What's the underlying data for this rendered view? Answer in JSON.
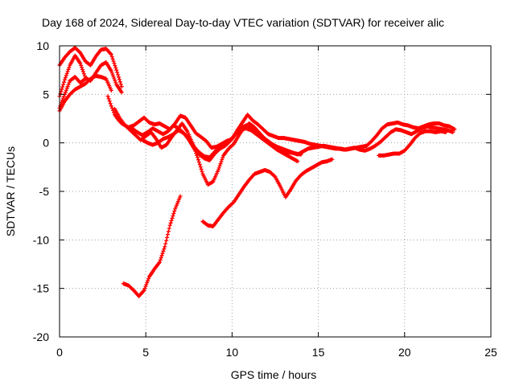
{
  "chart_data": {
    "type": "scatter",
    "title": "Day 168 of 2024, Sidereal Day-to-day VTEC variation (SDTVAR) for receiver alic",
    "xlabel": "GPS time / hours",
    "ylabel": "SDTVAR / TECUs",
    "xlim": [
      0,
      25
    ],
    "ylim": [
      -20,
      10
    ],
    "xticks": [
      0,
      5,
      10,
      15,
      20,
      25
    ],
    "yticks": [
      -20,
      -15,
      -10,
      -5,
      0,
      5,
      10
    ],
    "grid": true,
    "legend": "none",
    "marker": "plus",
    "color": "#ff0000",
    "tracks": [
      {
        "x": [
          0.0,
          0.3,
          0.6,
          0.9,
          1.2,
          1.5,
          1.8,
          2.1,
          2.4,
          2.7,
          3.0,
          3.3,
          3.6
        ],
        "y": [
          8.0,
          8.8,
          9.4,
          9.8,
          9.3,
          8.4,
          8.0,
          8.9,
          9.6,
          9.7,
          9.1,
          7.5,
          5.8
        ]
      },
      {
        "x": [
          0.0,
          0.3,
          0.6,
          0.9,
          1.2,
          1.5,
          1.8,
          2.1,
          2.4,
          2.7,
          3.0,
          3.3,
          3.6
        ],
        "y": [
          4.8,
          6.5,
          8.0,
          9.0,
          8.2,
          6.7,
          6.4,
          7.2,
          8.0,
          8.3,
          7.4,
          6.0,
          5.2
        ]
      },
      {
        "x": [
          0.0,
          0.3,
          0.6,
          0.9,
          1.2,
          1.5,
          1.8,
          2.1,
          2.4,
          2.7,
          3.0
        ],
        "y": [
          3.3,
          4.3,
          5.0,
          5.5,
          5.8,
          6.1,
          6.6,
          6.9,
          6.8,
          6.6,
          5.4
        ]
      },
      {
        "x": [
          0.0,
          0.3,
          0.6,
          0.9,
          1.2,
          1.5
        ],
        "y": [
          3.6,
          5.0,
          6.4,
          6.8,
          6.2,
          6.6
        ]
      },
      {
        "x": [
          2.8,
          3.0,
          3.2,
          3.4,
          3.6,
          3.8,
          4.0,
          4.3,
          4.6,
          4.9,
          5.2,
          5.5,
          5.8,
          6.1,
          6.4,
          6.7,
          7.0,
          7.3,
          7.6,
          7.9,
          8.2,
          8.5,
          8.8,
          9.1,
          9.4,
          9.7,
          10.0,
          10.3,
          10.6,
          10.9,
          11.2,
          11.5,
          11.8,
          12.1,
          12.4,
          12.7,
          13.0,
          13.3,
          13.6,
          13.9,
          14.2,
          14.5,
          14.8,
          15.1,
          15.4,
          15.7,
          16.0,
          16.3,
          16.6,
          16.9,
          17.2,
          17.5,
          17.8,
          18.1,
          18.4,
          18.7,
          19.0,
          19.3,
          19.6,
          19.9,
          20.2,
          20.5,
          20.8,
          21.1,
          21.4,
          21.7,
          22.0,
          22.3,
          22.6,
          22.9
        ],
        "y": [
          4.8,
          3.8,
          2.9,
          2.4,
          2.0,
          1.8,
          1.6,
          1.8,
          2.2,
          2.6,
          2.1,
          1.9,
          2.0,
          1.7,
          1.4,
          2.0,
          2.8,
          2.6,
          1.8,
          1.0,
          0.6,
          0.2,
          -0.5,
          -0.4,
          -0.1,
          0.2,
          0.4,
          1.3,
          2.1,
          2.9,
          2.3,
          1.9,
          1.4,
          0.9,
          0.7,
          0.5,
          0.5,
          0.4,
          0.3,
          0.2,
          0.1,
          -0.1,
          -0.2,
          -0.3,
          -0.4,
          -0.5,
          -0.6,
          -0.6,
          -0.7,
          -0.6,
          -0.5,
          -0.4,
          -0.3,
          0.2,
          0.8,
          1.5,
          1.9,
          2.0,
          2.1,
          1.9,
          1.8,
          1.6,
          1.5,
          1.7,
          1.9,
          2.0,
          2.0,
          1.8,
          1.7,
          1.4
        ]
      },
      {
        "x": [
          3.2,
          3.5,
          3.8,
          4.1,
          4.4,
          4.7,
          5.0,
          5.3,
          5.6,
          5.9,
          6.2,
          6.5,
          6.8,
          7.1,
          7.4,
          7.7,
          8.0,
          8.3,
          8.6,
          8.9,
          9.2,
          9.5,
          9.8,
          10.1,
          10.4,
          10.7,
          11.0,
          11.3,
          11.6,
          11.9,
          12.2,
          12.5,
          12.8,
          13.1,
          13.4,
          13.7,
          14.0
        ],
        "y": [
          3.5,
          2.5,
          1.8,
          1.3,
          0.8,
          0.3,
          0.7,
          1.1,
          0.4,
          -0.5,
          -0.2,
          0.6,
          1.3,
          2.0,
          1.2,
          0.0,
          -1.5,
          -3.2,
          -4.3,
          -4.0,
          -2.8,
          -1.3,
          -0.6,
          -0.1,
          0.8,
          1.6,
          2.0,
          1.6,
          1.0,
          0.4,
          0.0,
          -0.4,
          -0.7,
          -0.9,
          -1.0,
          -1.1,
          -1.2
        ]
      },
      {
        "x": [
          4.2,
          4.5,
          4.8,
          5.1,
          5.4,
          5.7,
          6.0,
          6.3,
          6.6,
          6.9,
          7.2,
          7.5,
          7.8,
          8.1,
          8.4,
          8.7,
          9.0,
          9.3,
          9.6,
          9.9,
          10.2,
          10.5,
          10.8,
          11.1,
          11.4,
          11.7,
          12.0,
          12.3,
          12.6,
          12.9,
          13.2,
          13.5,
          13.8,
          14.1,
          14.4,
          14.7,
          15.0,
          15.3,
          15.6,
          15.9,
          16.2,
          16.5,
          16.8,
          17.1,
          17.4,
          17.7,
          18.0,
          18.3,
          18.6,
          18.9,
          19.2,
          19.5,
          19.8,
          20.1,
          20.4,
          20.7,
          21.0,
          21.3,
          21.6,
          21.9,
          22.2,
          22.5,
          22.8
        ],
        "y": [
          1.5,
          1.1,
          0.8,
          1.1,
          1.5,
          1.2,
          0.9,
          1.2,
          1.8,
          1.5,
          1.0,
          0.3,
          -0.6,
          -1.2,
          -1.6,
          -1.8,
          -1.1,
          -0.6,
          -0.3,
          0.2,
          0.9,
          1.5,
          1.8,
          1.6,
          1.2,
          0.7,
          0.3,
          -0.1,
          -0.4,
          -0.6,
          -0.8,
          -1.0,
          -1.2,
          -0.9,
          -0.6,
          -0.5,
          -0.4,
          -0.3,
          -0.4,
          -0.5,
          -0.6,
          -0.7,
          -0.6,
          -0.5,
          -0.7,
          -0.8,
          -0.6,
          -0.3,
          0.1,
          0.6,
          1.1,
          1.4,
          1.3,
          1.1,
          0.9,
          1.2,
          1.5,
          1.7,
          1.6,
          1.5,
          1.4,
          1.3,
          1.1
        ]
      },
      {
        "x": [
          4.8,
          5.1,
          5.4,
          5.7,
          6.0,
          6.3,
          6.6,
          6.9,
          7.2,
          7.5,
          7.8,
          8.1,
          8.4,
          8.7,
          9.0,
          9.3,
          9.6,
          9.9,
          10.2,
          10.5,
          10.8,
          11.1,
          11.4,
          11.7,
          12.0,
          12.3,
          12.6,
          12.9,
          13.2,
          13.5,
          13.8
        ],
        "y": [
          0.3,
          0.0,
          -0.2,
          0.0,
          0.4,
          0.6,
          0.9,
          1.3,
          1.0,
          0.5,
          -0.4,
          -1.0,
          -1.4,
          -1.5,
          -0.9,
          -0.4,
          -0.1,
          0.3,
          0.9,
          1.3,
          1.5,
          1.3,
          0.9,
          0.5,
          0.1,
          -0.3,
          -0.7,
          -1.0,
          -1.3,
          -1.6,
          -1.9
        ]
      },
      {
        "x": [
          18.5,
          18.8,
          19.1,
          19.4,
          19.7,
          20.0,
          20.3,
          20.6,
          20.9,
          21.2,
          21.5,
          21.8,
          22.1,
          22.4
        ],
        "y": [
          -1.3,
          -1.3,
          -1.2,
          -1.1,
          -1.1,
          -0.8,
          -0.2,
          0.5,
          1.0,
          1.2,
          1.2,
          1.1,
          1.2,
          1.1
        ]
      },
      {
        "x": [
          3.7,
          4.0,
          4.3,
          4.6,
          4.9,
          5.2,
          5.5,
          5.8,
          6.1,
          6.4,
          6.7,
          7.0
        ],
        "y": [
          -14.5,
          -14.7,
          -15.2,
          -15.8,
          -15.2,
          -13.8,
          -13.0,
          -12.3,
          -10.7,
          -8.5,
          -6.8,
          -5.5
        ]
      },
      {
        "x": [
          8.3,
          8.6,
          8.9,
          9.2,
          9.5,
          9.8,
          10.1,
          10.4,
          10.7,
          11.0,
          11.3,
          11.6,
          11.9,
          12.2,
          12.5,
          12.8,
          13.1,
          13.4,
          13.7,
          14.0,
          14.3,
          14.6,
          14.9,
          15.2,
          15.5,
          15.8
        ],
        "y": [
          -8.1,
          -8.5,
          -8.6,
          -7.9,
          -7.2,
          -6.6,
          -6.1,
          -5.3,
          -4.5,
          -3.8,
          -3.2,
          -3.0,
          -2.8,
          -3.0,
          -3.5,
          -4.5,
          -5.6,
          -4.8,
          -3.9,
          -3.3,
          -2.9,
          -2.6,
          -2.3,
          -2.0,
          -1.9,
          -1.7
        ]
      }
    ]
  }
}
